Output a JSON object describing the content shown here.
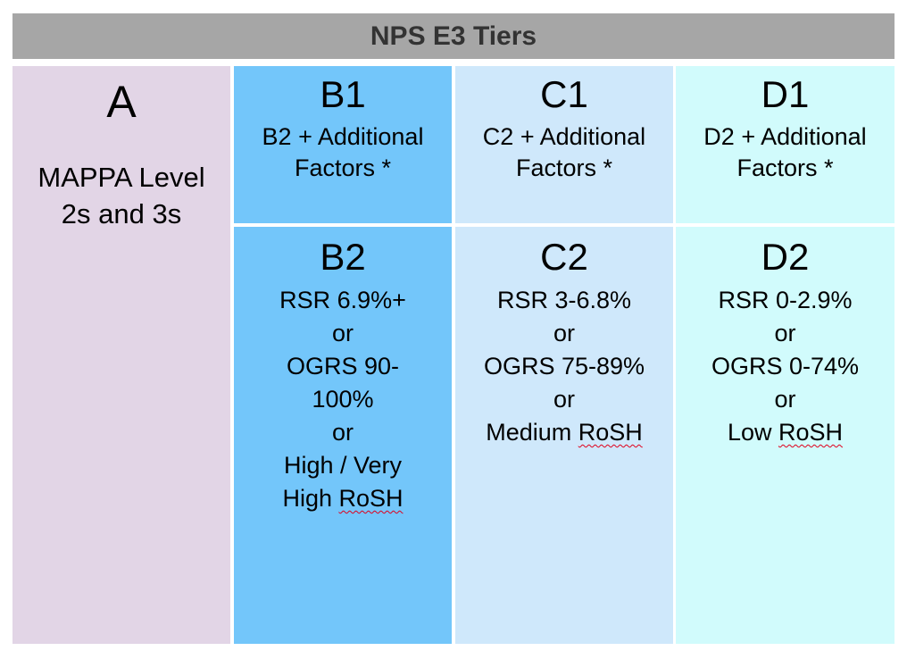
{
  "title": "NPS E3 Tiers",
  "tier_a": {
    "label": "A",
    "lines": [
      "MAPPA Level",
      "2s and 3s"
    ]
  },
  "b1": {
    "label": "B1",
    "lines": [
      "B2 + Additional",
      "Factors *"
    ]
  },
  "c1": {
    "label": "C1",
    "lines": [
      "C2 + Additional",
      "Factors *"
    ]
  },
  "d1": {
    "label": "D1",
    "lines": [
      "D2 + Additional",
      "Factors *"
    ]
  },
  "b2": {
    "label": "B2",
    "lines": [
      "RSR 6.9%+",
      "or",
      "OGRS 90-",
      "100%",
      "or",
      "High / Very"
    ],
    "last_prefix": "High ",
    "last_word": "RoSH"
  },
  "c2": {
    "label": "C2",
    "lines": [
      "RSR 3-6.8%",
      "or",
      "OGRS 75-89%",
      "or"
    ],
    "last_prefix": "Medium ",
    "last_word": "RoSH"
  },
  "d2": {
    "label": "D2",
    "lines": [
      "RSR 0-2.9%",
      "or",
      "OGRS 0-74%",
      "or"
    ],
    "last_prefix": "Low ",
    "last_word": "RoSH"
  },
  "colors": {
    "title_bar": "#a6a6a6",
    "tier_a": "#e2d5e6",
    "tier_b": "#73c6fa",
    "tier_c": "#cfe8fb",
    "tier_d": "#d1fbfc"
  }
}
